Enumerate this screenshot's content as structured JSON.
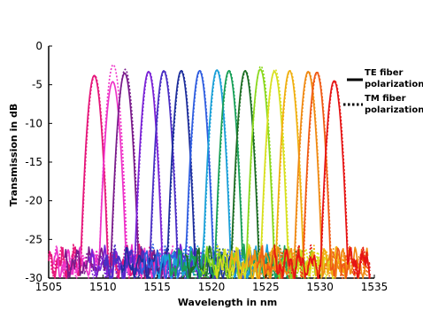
{
  "chart_data": {
    "type": "line",
    "title": "",
    "xlabel": "Wavelength in nm",
    "ylabel": "Transmission in dB",
    "xlim": [
      1505,
      1535
    ],
    "ylim": [
      -30,
      0
    ],
    "x_ticks": [
      "1505",
      "1510",
      "1515",
      "1520",
      "1525",
      "1530",
      "1535"
    ],
    "y_ticks": [
      "0",
      "-5",
      "-10",
      "-15",
      "-20",
      "-25",
      "-30"
    ],
    "grid": false,
    "legend_position": "right",
    "legend": [
      {
        "label_line1": "TE fiber",
        "label_line2": "polarization",
        "style": "solid"
      },
      {
        "label_line1": "TM fiber",
        "label_line2": "polarization",
        "style": "dotted"
      }
    ],
    "channels": [
      {
        "center_nm": 1509.2,
        "peak_db_te": -3.8,
        "peak_db_tm": -3.8,
        "color": "#e6157a"
      },
      {
        "center_nm": 1510.9,
        "peak_db_te": -4.6,
        "peak_db_tm": -2.4,
        "color": "#ee33c8"
      },
      {
        "center_nm": 1512.0,
        "peak_db_te": -3.5,
        "peak_db_tm": -3.0,
        "color": "#7a1c8c"
      },
      {
        "center_nm": 1514.2,
        "peak_db_te": -3.3,
        "peak_db_tm": -3.3,
        "color": "#7a22d6"
      },
      {
        "center_nm": 1515.6,
        "peak_db_te": -3.2,
        "peak_db_tm": -3.2,
        "color": "#4a2ec4"
      },
      {
        "center_nm": 1517.2,
        "peak_db_te": -3.2,
        "peak_db_tm": -3.2,
        "color": "#1d2e9c"
      },
      {
        "center_nm": 1518.9,
        "peak_db_te": -3.2,
        "peak_db_tm": -3.2,
        "color": "#2f5de0"
      },
      {
        "center_nm": 1520.5,
        "peak_db_te": -3.1,
        "peak_db_tm": -3.1,
        "color": "#1aa0d8"
      },
      {
        "center_nm": 1521.6,
        "peak_db_te": -3.2,
        "peak_db_tm": -3.2,
        "color": "#18a058"
      },
      {
        "center_nm": 1523.1,
        "peak_db_te": -3.2,
        "peak_db_tm": -3.2,
        "color": "#1d6e24"
      },
      {
        "center_nm": 1524.5,
        "peak_db_te": -3.0,
        "peak_db_tm": -2.6,
        "color": "#8ad81c"
      },
      {
        "center_nm": 1525.8,
        "peak_db_te": -3.3,
        "peak_db_tm": -3.0,
        "color": "#d8e020"
      },
      {
        "center_nm": 1527.2,
        "peak_db_te": -3.2,
        "peak_db_tm": -3.2,
        "color": "#f0b010"
      },
      {
        "center_nm": 1528.9,
        "peak_db_te": -3.3,
        "peak_db_tm": -3.3,
        "color": "#f08a14"
      },
      {
        "center_nm": 1529.7,
        "peak_db_te": -3.4,
        "peak_db_tm": -3.4,
        "color": "#f05a14"
      },
      {
        "center_nm": 1531.3,
        "peak_db_te": -4.5,
        "peak_db_tm": -4.5,
        "color": "#e61414"
      }
    ]
  }
}
